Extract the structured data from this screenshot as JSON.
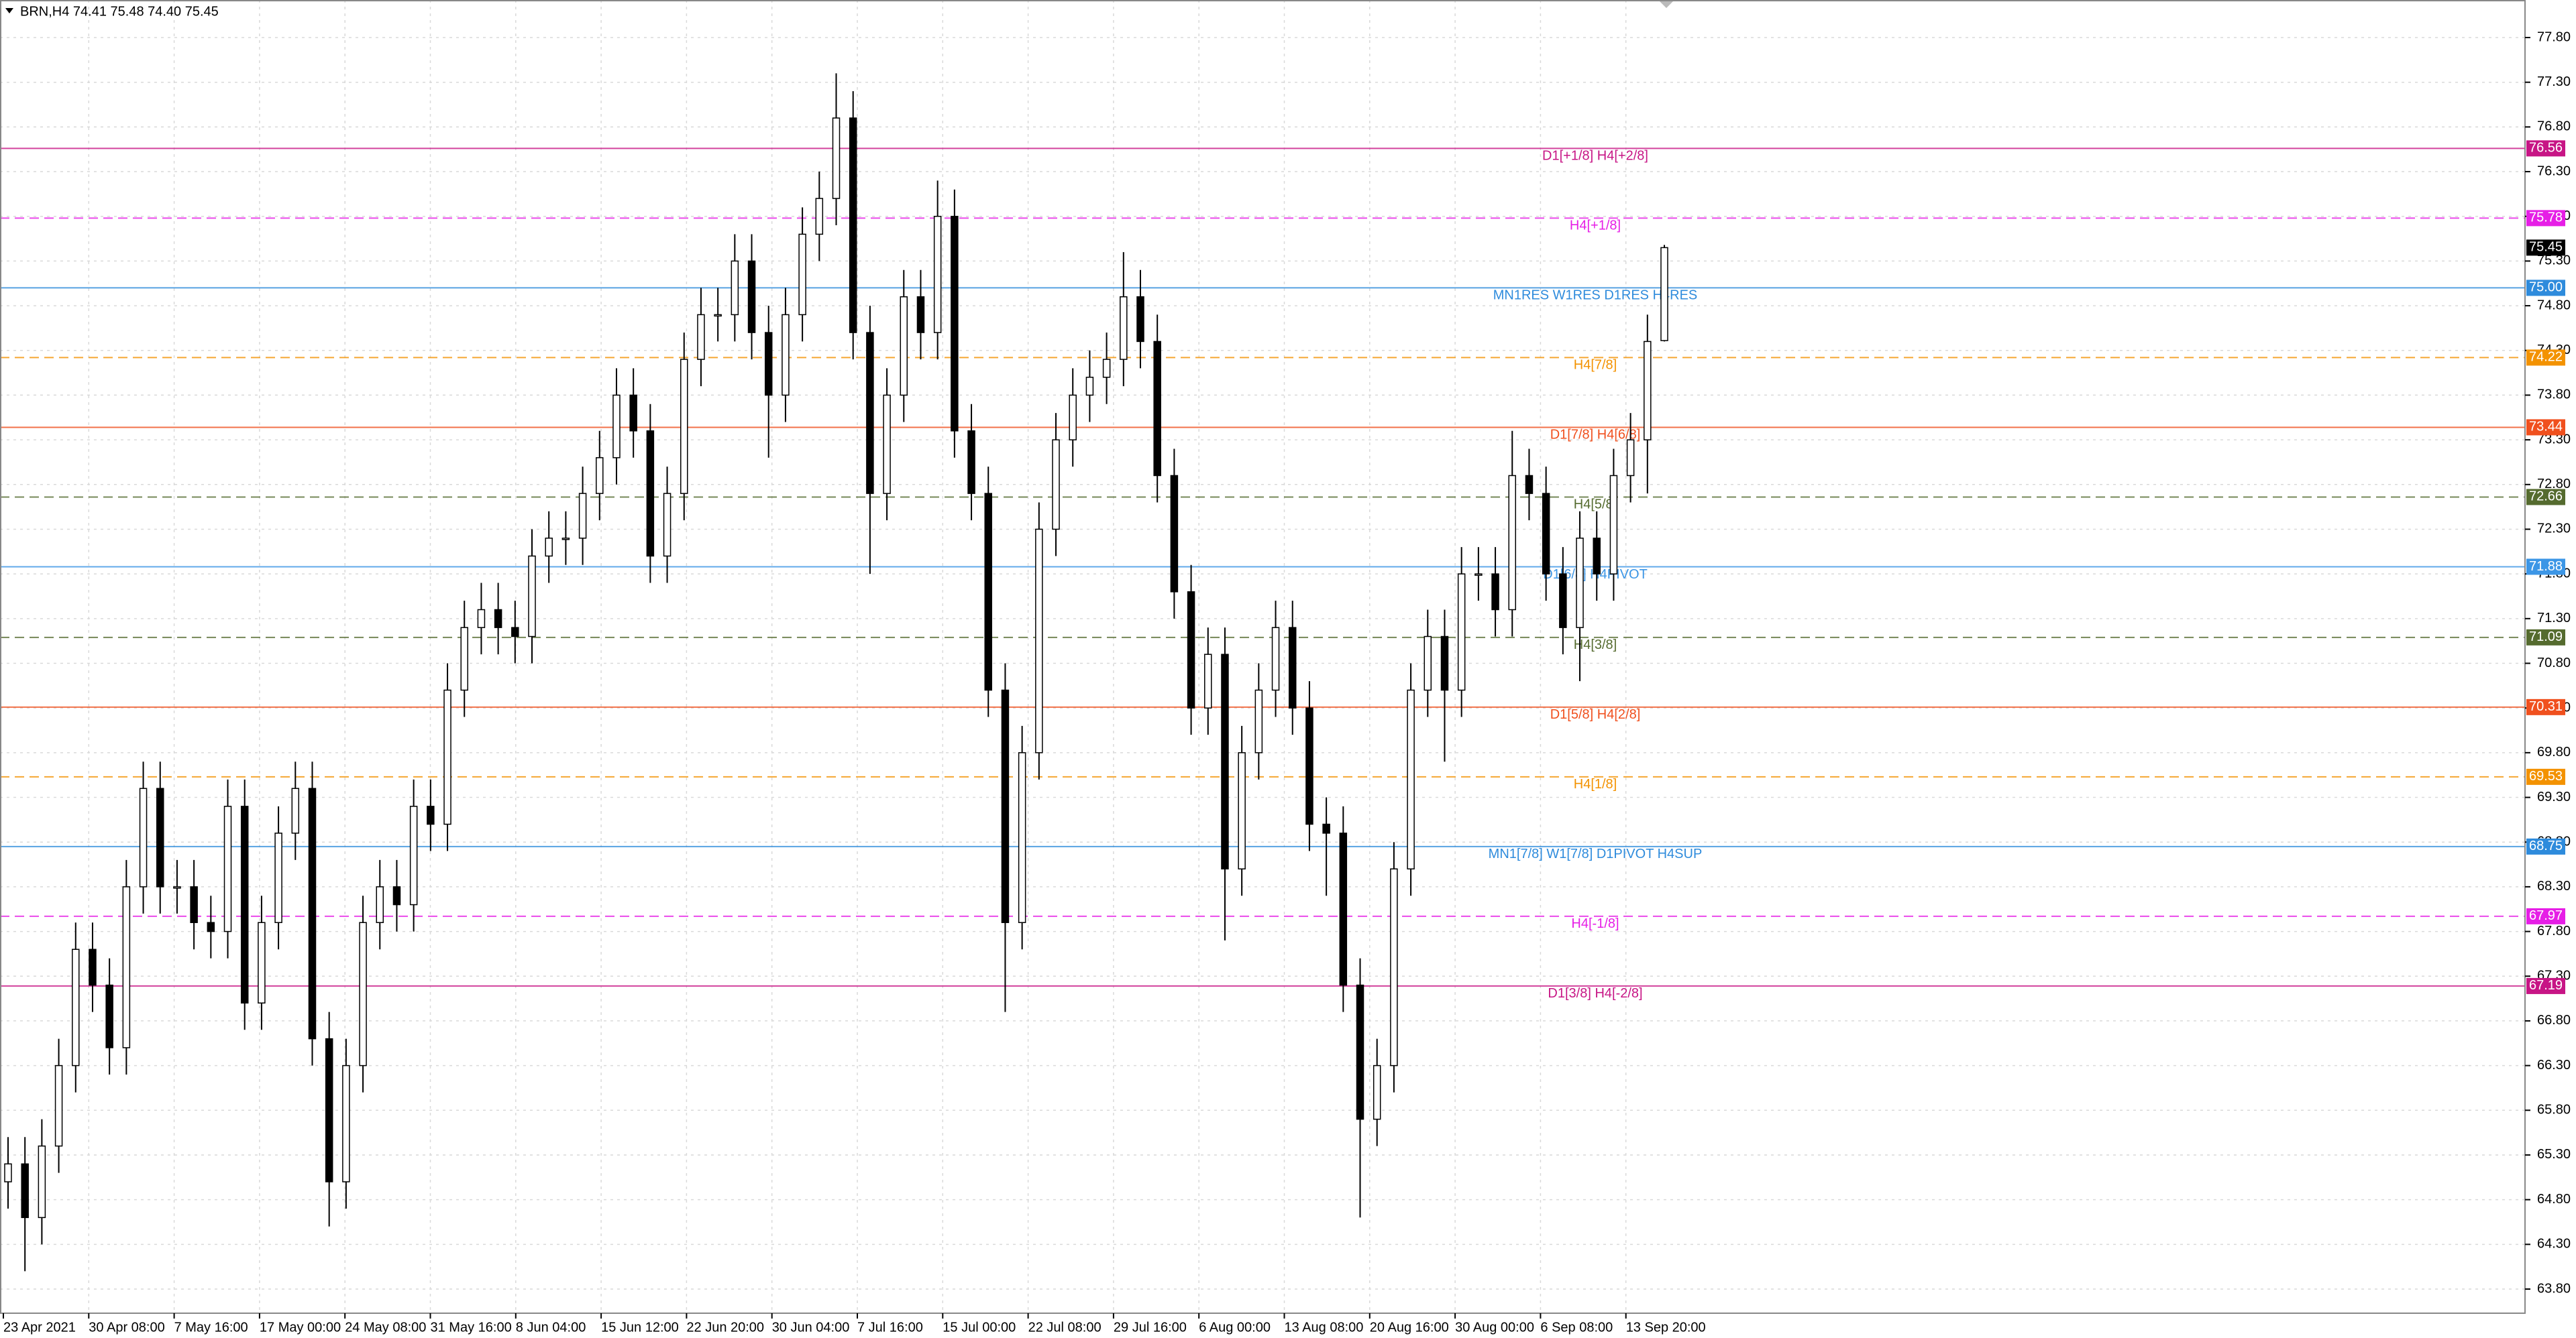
{
  "chart_data": {
    "type": "candlestick",
    "title": "BRN,H4  74.41 75.48 74.40 75.45",
    "categories": [
      "23 Apr 2021",
      "30 Apr 08:00",
      "7 May 16:00",
      "17 May 00:00",
      "24 May 08:00",
      "31 May 16:00",
      "8 Jun 04:00",
      "15 Jun 12:00",
      "22 Jun 20:00",
      "30 Jun 04:00",
      "7 Jul 16:00",
      "15 Jul 00:00",
      "22 Jul 08:00",
      "29 Jul 16:00",
      "6 Aug 00:00",
      "13 Aug 08:00",
      "20 Aug 16:00",
      "30 Aug 00:00",
      "6 Sep 08:00",
      "13 Sep 20:00"
    ],
    "open": [
      65.0,
      65.2,
      64.6,
      65.4,
      66.3,
      67.6,
      67.2,
      66.5,
      68.3,
      69.4,
      68.3,
      68.3,
      67.9,
      67.8,
      69.2,
      67.0,
      67.9,
      68.9,
      69.4,
      66.6,
      65.0,
      66.3,
      67.9,
      68.3,
      68.1,
      69.2,
      69.0,
      70.5,
      71.2,
      71.4,
      71.2,
      71.1,
      72.0,
      72.2,
      72.2,
      72.7,
      73.1,
      73.8,
      73.4,
      72.0,
      72.7,
      74.2,
      74.7,
      74.7,
      75.3,
      74.5,
      73.8,
      74.7,
      75.6,
      76.0,
      76.9,
      74.5,
      72.7,
      73.8,
      74.9,
      74.5,
      75.8,
      73.4,
      72.7,
      70.5,
      67.9,
      69.8,
      72.3,
      73.3,
      73.8,
      74.0,
      74.2,
      74.9,
      74.4,
      72.9,
      71.6,
      70.3,
      70.9,
      68.5,
      69.8,
      70.5,
      71.2,
      70.3,
      69.0,
      68.9,
      67.2,
      65.7,
      66.3,
      68.5,
      70.5,
      71.1,
      70.5,
      71.8,
      71.8,
      71.4,
      72.9,
      72.7,
      71.8,
      71.2,
      72.2,
      71.8,
      72.9,
      73.3,
      74.41
    ],
    "high": [
      65.5,
      65.5,
      65.7,
      66.6,
      67.9,
      67.9,
      67.5,
      68.6,
      69.7,
      69.7,
      68.6,
      68.6,
      68.2,
      69.5,
      69.5,
      68.2,
      69.2,
      69.7,
      69.7,
      66.9,
      66.6,
      68.2,
      68.6,
      68.6,
      69.5,
      69.5,
      70.8,
      71.5,
      71.7,
      71.7,
      71.5,
      72.3,
      72.5,
      72.5,
      73.0,
      73.4,
      74.1,
      74.1,
      73.7,
      73.0,
      74.5,
      75.0,
      75.0,
      75.6,
      75.6,
      74.8,
      75.0,
      75.9,
      76.3,
      77.4,
      77.2,
      74.8,
      74.1,
      75.2,
      75.2,
      76.2,
      76.1,
      73.7,
      73.0,
      70.8,
      70.1,
      72.6,
      73.6,
      74.1,
      74.3,
      74.5,
      75.4,
      75.2,
      74.7,
      73.2,
      71.9,
      71.2,
      71.2,
      70.1,
      70.8,
      71.5,
      71.5,
      70.6,
      69.3,
      69.2,
      67.5,
      66.6,
      68.8,
      70.8,
      71.4,
      71.4,
      72.1,
      72.1,
      72.1,
      73.4,
      73.2,
      73.0,
      72.1,
      72.5,
      72.5,
      73.2,
      73.6,
      74.7,
      75.48
    ],
    "low": [
      64.7,
      64.0,
      64.3,
      65.1,
      66.0,
      66.9,
      66.2,
      66.2,
      68.0,
      68.0,
      68.0,
      67.6,
      67.5,
      67.5,
      66.7,
      66.7,
      67.6,
      68.6,
      66.3,
      64.5,
      64.7,
      66.0,
      67.6,
      67.8,
      67.8,
      68.7,
      68.7,
      70.2,
      70.9,
      70.9,
      70.8,
      70.8,
      71.7,
      71.9,
      71.9,
      72.4,
      72.8,
      73.1,
      71.7,
      71.7,
      72.4,
      73.9,
      74.4,
      74.4,
      74.2,
      73.1,
      73.5,
      74.4,
      75.3,
      75.7,
      74.2,
      71.8,
      72.4,
      73.5,
      74.2,
      74.2,
      73.1,
      72.4,
      70.2,
      66.9,
      67.6,
      69.5,
      72.0,
      73.0,
      73.5,
      73.7,
      73.9,
      74.1,
      72.6,
      71.3,
      70.0,
      70.0,
      67.7,
      68.2,
      69.5,
      70.2,
      70.0,
      68.7,
      68.2,
      66.9,
      64.6,
      65.4,
      66.0,
      68.2,
      70.2,
      69.7,
      70.2,
      71.5,
      71.1,
      71.1,
      72.4,
      71.5,
      70.9,
      70.6,
      71.5,
      71.5,
      72.6,
      72.7,
      74.4
    ],
    "close": [
      65.2,
      64.6,
      65.4,
      66.3,
      67.6,
      67.2,
      66.5,
      68.3,
      69.4,
      68.3,
      68.3,
      67.9,
      67.8,
      69.2,
      67.0,
      67.9,
      68.9,
      69.4,
      66.6,
      65.0,
      66.3,
      67.9,
      68.3,
      68.1,
      69.2,
      69.0,
      70.5,
      71.2,
      71.4,
      71.2,
      71.1,
      72.0,
      72.2,
      72.2,
      72.7,
      73.1,
      73.8,
      73.4,
      72.0,
      72.7,
      74.2,
      74.7,
      74.7,
      75.3,
      74.5,
      73.8,
      74.7,
      75.6,
      76.0,
      76.9,
      74.5,
      72.7,
      73.8,
      74.9,
      74.5,
      75.8,
      73.4,
      72.7,
      70.5,
      67.9,
      69.8,
      72.3,
      73.3,
      73.8,
      74.0,
      74.2,
      74.9,
      74.4,
      72.9,
      71.6,
      70.3,
      70.9,
      68.5,
      69.8,
      70.5,
      71.2,
      70.3,
      69.0,
      68.9,
      67.2,
      65.7,
      66.3,
      68.5,
      70.5,
      71.1,
      70.5,
      71.8,
      71.8,
      71.4,
      72.9,
      72.7,
      71.8,
      71.2,
      72.2,
      71.8,
      72.9,
      73.3,
      74.4,
      75.45
    ],
    "up_color": "#ffffff",
    "down_color": "#000000",
    "ylim": [
      63.53,
      78.22
    ],
    "yticks": [
      {
        "value": 77.8,
        "label": "77.80"
      },
      {
        "value": 77.3,
        "label": "77.30"
      },
      {
        "value": 76.8,
        "label": "76.80"
      },
      {
        "value": 76.3,
        "label": "76.30"
      },
      {
        "value": 75.8,
        "label": "75.80"
      },
      {
        "value": 75.3,
        "label": "75.30"
      },
      {
        "value": 74.8,
        "label": "74.80"
      },
      {
        "value": 74.3,
        "label": "74.30"
      },
      {
        "value": 73.8,
        "label": "73.80"
      },
      {
        "value": 73.3,
        "label": "73.30"
      },
      {
        "value": 72.8,
        "label": "72.80"
      },
      {
        "value": 72.3,
        "label": "72.30"
      },
      {
        "value": 71.8,
        "label": "71.80"
      },
      {
        "value": 71.3,
        "label": "71.30"
      },
      {
        "value": 70.8,
        "label": "70.80"
      },
      {
        "value": 70.3,
        "label": "70.30"
      },
      {
        "value": 69.8,
        "label": "69.80"
      },
      {
        "value": 69.3,
        "label": "69.30"
      },
      {
        "value": 68.8,
        "label": "68.80"
      },
      {
        "value": 68.3,
        "label": "68.30"
      },
      {
        "value": 67.8,
        "label": "67.80"
      },
      {
        "value": 67.3,
        "label": "67.30"
      },
      {
        "value": 66.8,
        "label": "66.80"
      },
      {
        "value": 66.3,
        "label": "66.30"
      },
      {
        "value": 65.8,
        "label": "65.80"
      },
      {
        "value": 65.3,
        "label": "65.30"
      },
      {
        "value": 64.8,
        "label": "64.80"
      },
      {
        "value": 64.3,
        "label": "64.30"
      },
      {
        "value": 63.8,
        "label": "63.80"
      }
    ],
    "grid": true,
    "levels": [
      {
        "price": 76.56,
        "label": "D1[+1/8] H4[+2/8]",
        "color": "#c71585",
        "dashed": false
      },
      {
        "price": 75.78,
        "label": "H4[+1/8]",
        "color": "#e61ee6",
        "dashed": true
      },
      {
        "price": 75.0,
        "price_label": "75.00",
        "label": "MN1RES W1RES D1RES H4RES",
        "color": "#2e8bdc",
        "dashed": false
      },
      {
        "price": 74.22,
        "label": "H4[7/8]",
        "color": "#f39200",
        "dashed": true
      },
      {
        "price": 73.44,
        "label": "D1[7/8] H4[6/8]",
        "color": "#f0501e",
        "dashed": false
      },
      {
        "price": 72.66,
        "label": "H4[5/8]",
        "color": "#556b2f",
        "dashed": true
      },
      {
        "price": 71.88,
        "label": "D1[6/8] H4PIVOT",
        "color": "#3c96e6",
        "dashed": false
      },
      {
        "price": 71.09,
        "label": "H4[3/8]",
        "color": "#556b2f",
        "dashed": true
      },
      {
        "price": 70.31,
        "label": "D1[5/8] H4[2/8]",
        "color": "#f0501e",
        "dashed": false
      },
      {
        "price": 69.53,
        "label": "H4[1/8]",
        "color": "#f39200",
        "dashed": true
      },
      {
        "price": 68.75,
        "label": "MN1[7/8] W1[7/8] D1PIVOT H4SUP",
        "color": "#2e8bdc",
        "dashed": false
      },
      {
        "price": 67.97,
        "label": "H4[-1/8]",
        "color": "#e61ee6",
        "dashed": true
      },
      {
        "price": 67.19,
        "label": "D1[3/8] H4[-2/8]",
        "color": "#c71585",
        "dashed": false
      }
    ]
  }
}
